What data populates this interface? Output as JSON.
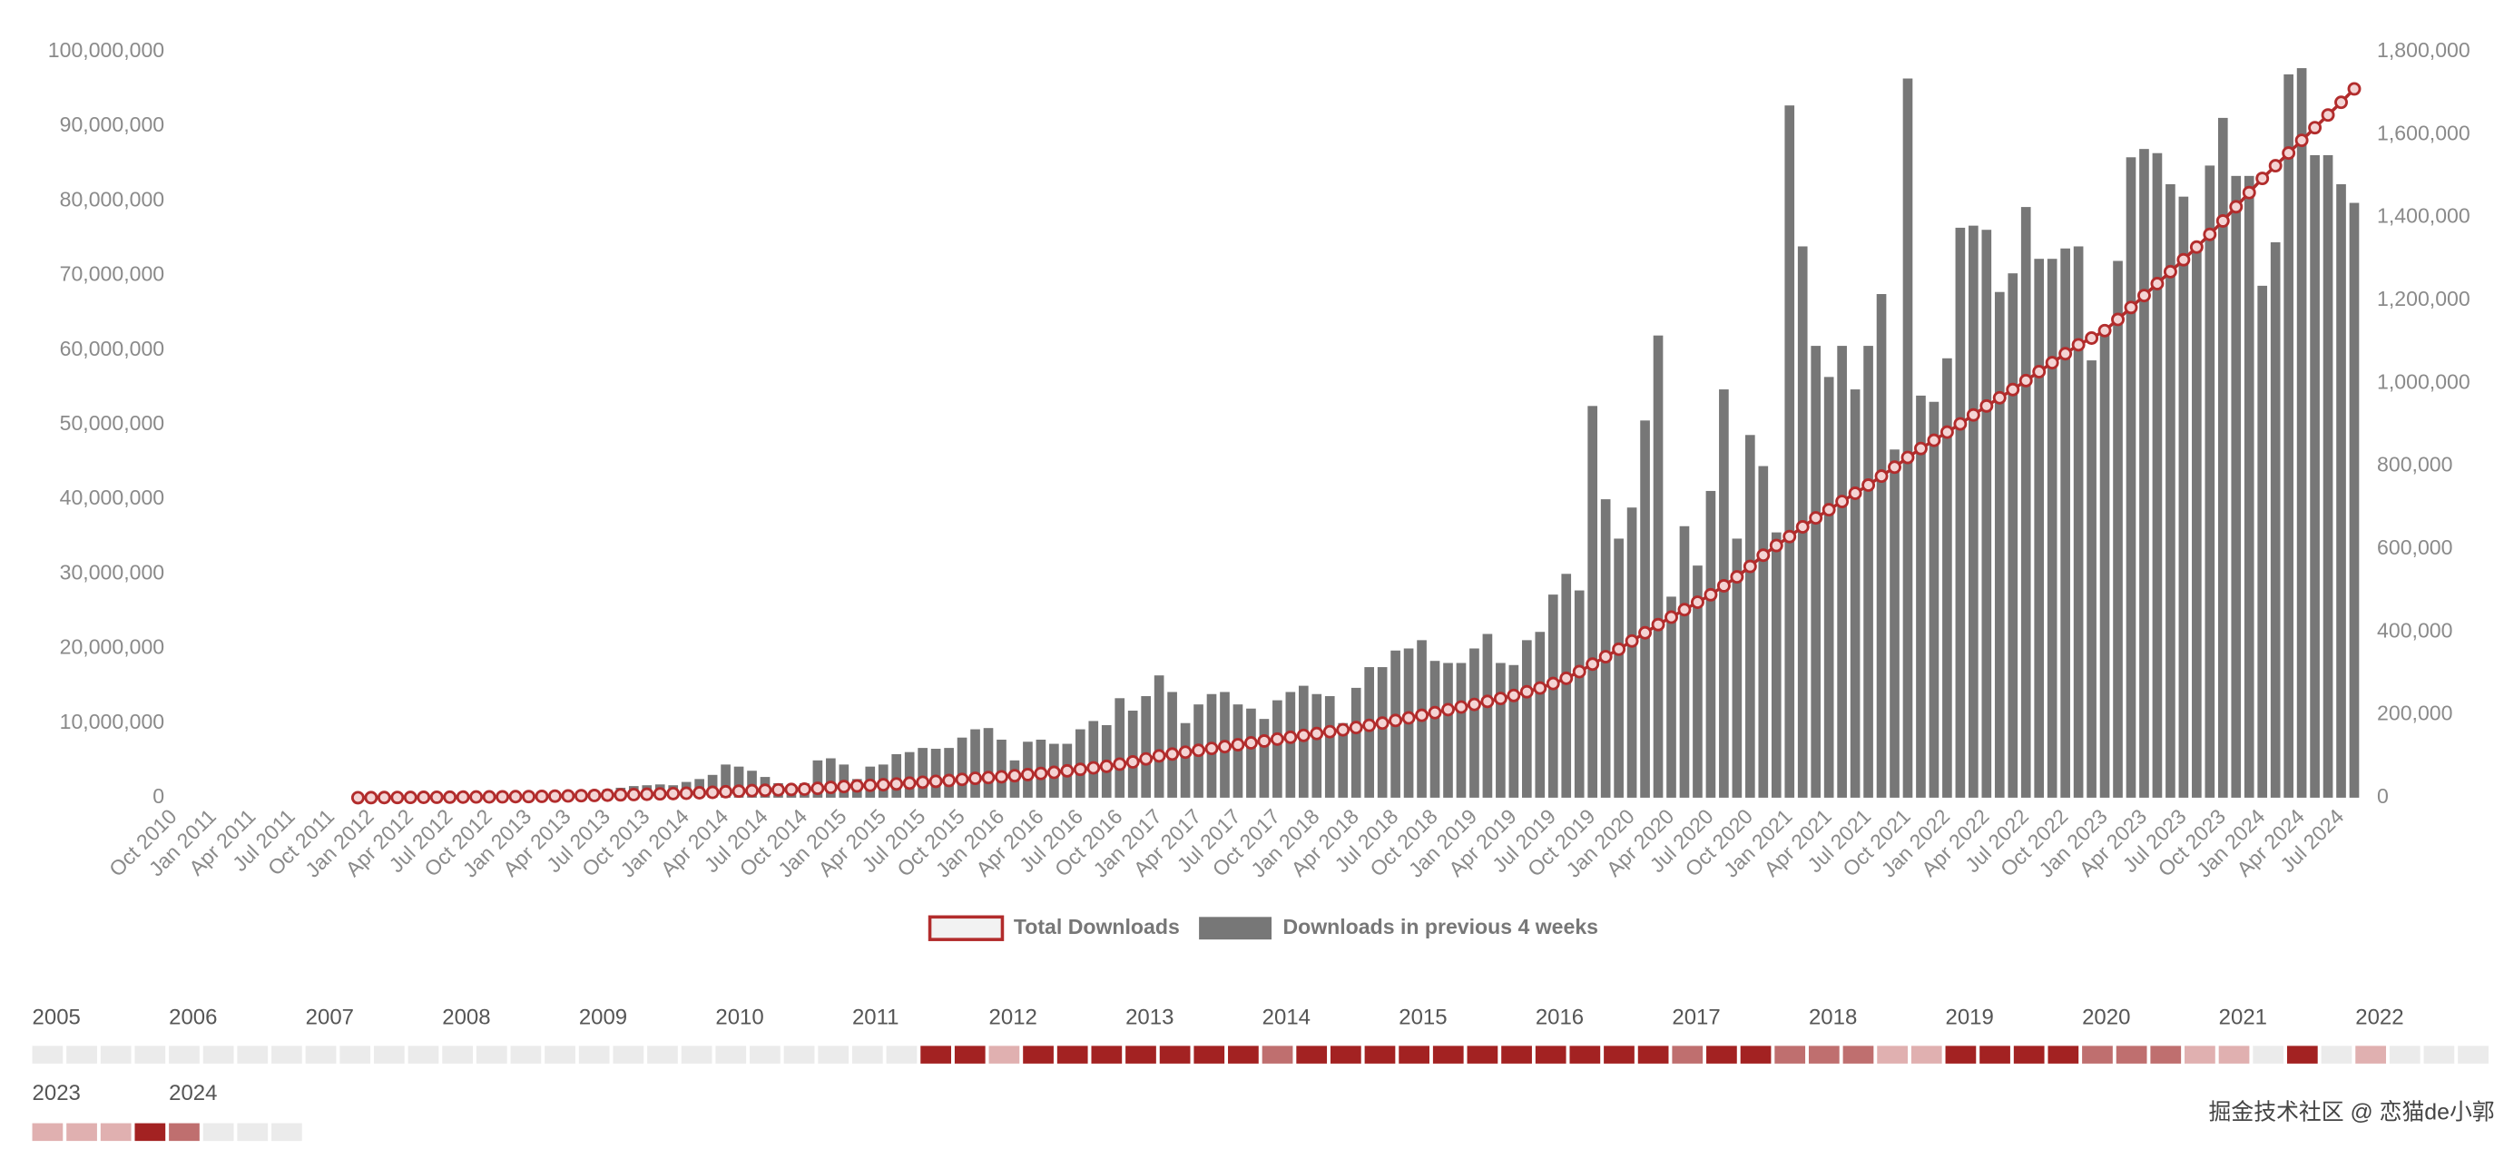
{
  "chart_data": {
    "type": "combo",
    "categories": [
      "Oct 2010",
      null,
      null,
      "Jan 2011",
      null,
      null,
      "Apr 2011",
      null,
      null,
      "Jul 2011",
      null,
      null,
      "Oct 2011",
      null,
      null,
      "Jan 2012",
      null,
      null,
      "Apr 2012",
      null,
      null,
      "Jul 2012",
      null,
      null,
      "Oct 2012",
      null,
      null,
      "Jan 2013",
      null,
      null,
      "Apr 2013",
      null,
      null,
      "Jul 2013",
      null,
      null,
      "Oct 2013",
      null,
      null,
      "Jan 2014",
      null,
      null,
      "Apr 2014",
      null,
      null,
      "Jul 2014",
      null,
      null,
      "Oct 2014",
      null,
      null,
      "Jan 2015",
      null,
      null,
      "Apr 2015",
      null,
      null,
      "Jul 2015",
      null,
      null,
      "Oct 2015",
      null,
      null,
      "Jan 2016",
      null,
      null,
      "Apr 2016",
      null,
      null,
      "Jul 2016",
      null,
      null,
      "Oct 2016",
      null,
      null,
      "Jan 2017",
      null,
      null,
      "Apr 2017",
      null,
      null,
      "Jul 2017",
      null,
      null,
      "Oct 2017",
      null,
      null,
      "Jan 2018",
      null,
      null,
      "Apr 2018",
      null,
      null,
      "Jul 2018",
      null,
      null,
      "Oct 2018",
      null,
      null,
      "Jan 2019",
      null,
      null,
      "Apr 2019",
      null,
      null,
      "Jul 2019",
      null,
      null,
      "Oct 2019",
      null,
      null,
      "Jan 2020",
      null,
      null,
      "Apr 2020",
      null,
      null,
      "Jul 2020",
      null,
      null,
      "Oct 2020",
      null,
      null,
      "Jan 2021",
      null,
      null,
      "Apr 2021",
      null,
      null,
      "Jul 2021",
      null,
      null,
      "Oct 2021",
      null,
      null,
      "Jan 2022",
      null,
      null,
      "Apr 2022",
      null,
      null,
      "Jul 2022",
      null,
      null,
      "Oct 2022",
      null,
      null,
      "Jan 2023",
      null,
      null,
      "Apr 2023",
      null,
      null,
      "Jul 2023",
      null,
      null,
      "Oct 2023",
      null,
      null,
      "Jan 2024",
      null,
      null,
      "Apr 2024",
      null,
      null,
      "Jul 2024",
      null
    ],
    "series": [
      {
        "name": "Total Downloads",
        "type": "line",
        "color": "#b22c2c",
        "values": [
          null,
          null,
          null,
          null,
          null,
          null,
          null,
          null,
          null,
          null,
          null,
          null,
          null,
          null,
          0,
          10000,
          20000,
          30000,
          40000,
          50000,
          60000,
          70000,
          80000,
          100000,
          110000,
          120000,
          140000,
          150000,
          180000,
          210000,
          240000,
          270000,
          300000,
          340000,
          380000,
          420000,
          460000,
          510000,
          550000,
          600000,
          660000,
          720000,
          800000,
          880000,
          950000,
          1000000,
          1050000,
          1100000,
          1150000,
          1250000,
          1380000,
          1500000,
          1580000,
          1660000,
          1740000,
          1840000,
          1950000,
          2070000,
          2190000,
          2310000,
          2450000,
          2600000,
          2700000,
          2800000,
          2950000,
          3100000,
          3250000,
          3400000,
          3600000,
          3800000,
          4000000,
          4200000,
          4500000,
          4800000,
          5200000,
          5600000,
          5850000,
          6100000,
          6350000,
          6600000,
          6850000,
          7100000,
          7350000,
          7600000,
          7850000,
          8100000,
          8350000,
          8600000,
          8850000,
          9100000,
          9400000,
          9700000,
          10000000,
          10350000,
          10700000,
          11050000,
          11400000,
          11800000,
          12150000,
          12500000,
          12900000,
          13300000,
          13700000,
          14200000,
          14700000,
          15300000,
          16000000,
          16900000,
          17900000,
          18900000,
          19900000,
          21000000,
          22100000,
          23200000,
          24200000,
          25200000,
          26200000,
          27200000,
          28400000,
          29600000,
          31000000,
          32500000,
          33800000,
          35000000,
          36300000,
          37500000,
          38600000,
          39700000,
          40800000,
          41900000,
          43100000,
          44300000,
          45600000,
          46800000,
          47900000,
          49000000,
          50100000,
          51300000,
          52500000,
          53600000,
          54700000,
          55900000,
          57100000,
          58300000,
          59500000,
          60700000,
          61600000,
          62600000,
          64100000,
          65700000,
          67300000,
          68900000,
          70500000,
          72100000,
          73800000,
          75500000,
          77300000,
          79200000,
          81100000,
          83000000,
          84700000,
          86400000,
          88100000,
          89800000,
          91500000,
          93200000,
          95000000
        ]
      },
      {
        "name": "Downloads in previous 4 weeks",
        "type": "bar",
        "color": "#777777",
        "axis": "y2",
        "values": [
          null,
          null,
          null,
          null,
          null,
          null,
          null,
          null,
          null,
          null,
          null,
          null,
          null,
          null,
          1000,
          1000,
          2000,
          2000,
          3000,
          3000,
          4000,
          4000,
          5000,
          6000,
          7000,
          8000,
          9000,
          10000,
          11000,
          12000,
          14000,
          15000,
          18000,
          20000,
          24000,
          28000,
          30000,
          32000,
          30000,
          38000,
          45000,
          55000,
          80000,
          75000,
          65000,
          50000,
          35000,
          30000,
          35000,
          90000,
          95000,
          80000,
          45000,
          75000,
          80000,
          105000,
          110000,
          120000,
          118000,
          120000,
          145000,
          165000,
          168000,
          140000,
          90000,
          135000,
          140000,
          130000,
          130000,
          165000,
          185000,
          175000,
          240000,
          210000,
          245000,
          295000,
          255000,
          180000,
          225000,
          250000,
          255000,
          225000,
          215000,
          190000,
          235000,
          255000,
          270000,
          250000,
          245000,
          180000,
          265000,
          315000,
          315000,
          355000,
          360000,
          380000,
          330000,
          325000,
          325000,
          360000,
          395000,
          325000,
          320000,
          380000,
          400000,
          490000,
          540000,
          500000,
          945000,
          720000,
          625000,
          700000,
          910000,
          1115000,
          485000,
          655000,
          560000,
          740000,
          985000,
          625000,
          875000,
          800000,
          640000,
          1670000,
          1330000,
          1090000,
          1015000,
          1090000,
          985000,
          1090000,
          1215000,
          840000,
          1735000,
          970000,
          955000,
          1060000,
          1375000,
          1380000,
          1370000,
          1220000,
          1265000,
          1425000,
          1300000,
          1300000,
          1325000,
          1330000,
          1055000,
          1135000,
          1295000,
          1545000,
          1565000,
          1555000,
          1480000,
          1450000,
          1340000,
          1525000,
          1640000,
          1500000,
          1500000,
          1235000,
          1340000,
          1745000,
          1760000,
          1550000,
          1550000,
          1480000,
          1435000
        ]
      }
    ],
    "ylim": [
      0,
      100000000
    ],
    "yticks": [
      0,
      {
        "value": 10000000,
        "label": "10,000,000"
      },
      {
        "value": 20000000,
        "label": "20,000,000"
      },
      {
        "value": 30000000,
        "label": "30,000,000"
      },
      {
        "value": 40000000,
        "label": "40,000,000"
      },
      {
        "value": 50000000,
        "label": "50,000,000"
      },
      {
        "value": 60000000,
        "label": "60,000,000"
      },
      {
        "value": 70000000,
        "label": "70,000,000"
      },
      {
        "value": 80000000,
        "label": "80,000,000"
      },
      {
        "value": 90000000,
        "label": "90,000,000"
      },
      {
        "value": 100000000,
        "label": "100,000,000"
      }
    ],
    "y2lim": [
      0,
      1800000
    ],
    "y2ticks": [
      0,
      {
        "value": 200000,
        "label": "200,000"
      },
      {
        "value": 400000,
        "label": "400,000"
      },
      {
        "value": 600000,
        "label": "600,000"
      },
      {
        "value": 800000,
        "label": "800,000"
      },
      {
        "value": 1000000,
        "label": "1,000,000"
      },
      {
        "value": 1200000,
        "label": "1,200,000"
      },
      {
        "value": 1400000,
        "label": "1,400,000"
      },
      {
        "value": 1600000,
        "label": "1,600,000"
      },
      {
        "value": 1800000,
        "label": "1,800,000"
      }
    ],
    "legend": "bottom"
  },
  "heatmap": {
    "colors": [
      "#ebebeb",
      "#e0b0b0",
      "#bf6f6f",
      "#a32222"
    ],
    "years": [
      "2005",
      "2006",
      "2007",
      "2008",
      "2009",
      "2010",
      "2011",
      "2012",
      "2013",
      "2014",
      "2015",
      "2016",
      "2017",
      "2018",
      "2019",
      "2020",
      "2021",
      "2022",
      "2023",
      "2024"
    ],
    "levels": [
      [
        0,
        0,
        0,
        0
      ],
      [
        0,
        0,
        0,
        0
      ],
      [
        0,
        0,
        0,
        0
      ],
      [
        0,
        0,
        0,
        0
      ],
      [
        0,
        0,
        0,
        0
      ],
      [
        0,
        0,
        0,
        0
      ],
      [
        0,
        0,
        3,
        3
      ],
      [
        1,
        3,
        3,
        3
      ],
      [
        3,
        3,
        3,
        3
      ],
      [
        2,
        3,
        3,
        3
      ],
      [
        3,
        3,
        3,
        3
      ],
      [
        3,
        3,
        3,
        3
      ],
      [
        2,
        3,
        3,
        2
      ],
      [
        2,
        2,
        1,
        1
      ],
      [
        3,
        3,
        3,
        3
      ],
      [
        2,
        2,
        2,
        1
      ],
      [
        1,
        0,
        3,
        0
      ],
      [
        1,
        0,
        0,
        0
      ],
      [
        1,
        1,
        1,
        3
      ],
      [
        2,
        0,
        0,
        0
      ]
    ]
  },
  "watermark": "掘金技术社区 @ 恋猫de小郭"
}
